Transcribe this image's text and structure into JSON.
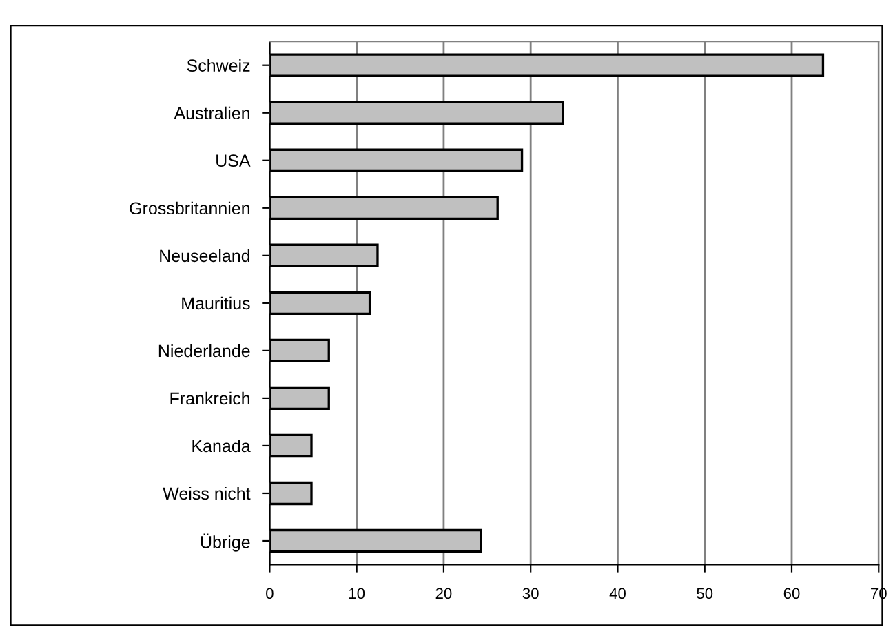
{
  "chart_data": {
    "type": "bar",
    "orientation": "horizontal",
    "categories": [
      "Schweiz",
      "Australien",
      "USA",
      "Grossbritannien",
      "Neuseeland",
      "Mauritius",
      "Niederlande",
      "Frankreich",
      "Kanada",
      "Weiss nicht",
      "Übrige"
    ],
    "values": [
      63.6,
      33.7,
      29.0,
      26.2,
      12.4,
      11.5,
      6.8,
      6.8,
      4.8,
      4.8,
      24.3
    ],
    "color": "#c0c0c0",
    "xlim": [
      0,
      70
    ],
    "xticks": [
      0,
      10,
      20,
      30,
      40,
      50,
      60,
      70
    ],
    "grid": "x"
  }
}
